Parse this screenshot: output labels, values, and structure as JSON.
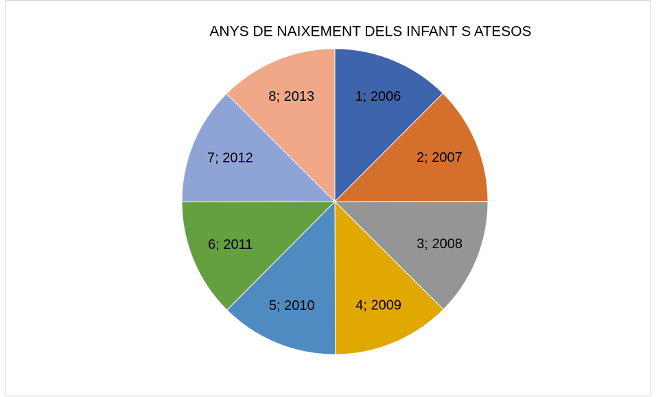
{
  "chart_data": {
    "type": "pie",
    "title": "ANYS DE NAIXEMENT DELS INFANT S ATESOS",
    "categories": [
      "1",
      "2",
      "3",
      "4",
      "5",
      "6",
      "7",
      "8"
    ],
    "values": [
      2006,
      2007,
      2008,
      2009,
      2010,
      2011,
      2012,
      2013
    ],
    "value_labels": [
      "1; 2006",
      "2; 2007",
      "3; 2008",
      "4; 2009",
      "5; 2010",
      "6; 2011",
      "7; 2012",
      "8; 2013"
    ],
    "colors": [
      "#3f64ae",
      "#d4702c",
      "#959595",
      "#e0a800",
      "#4f8bc0",
      "#64a040",
      "#8fa4d6",
      "#f0a888"
    ]
  }
}
